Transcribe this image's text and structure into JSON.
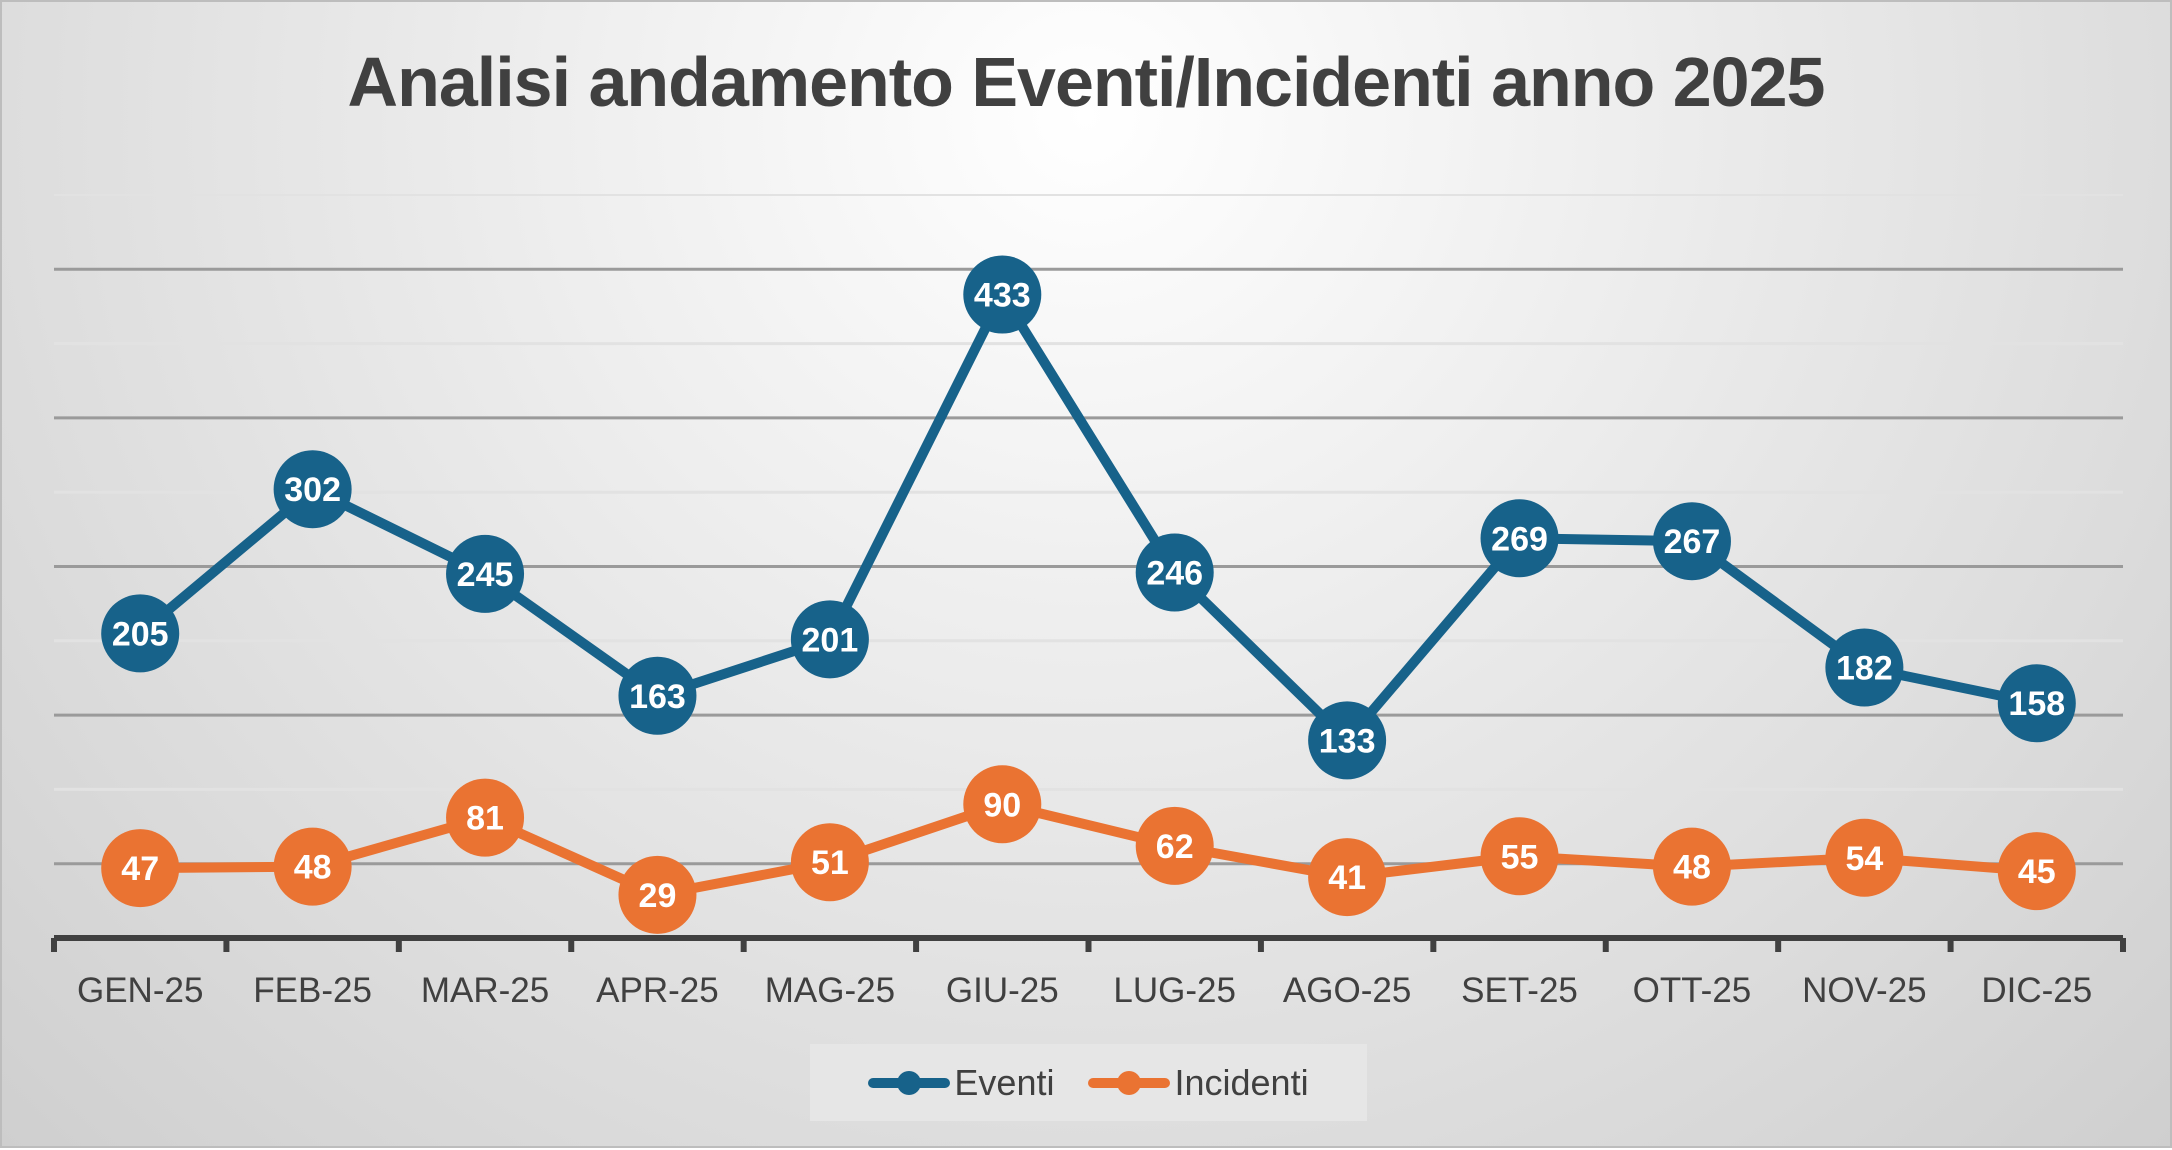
{
  "chart_data": {
    "type": "line",
    "title": "Analisi andamento Eventi/Incidenti anno 2025",
    "categories": [
      "GEN-25",
      "FEB-25",
      "MAR-25",
      "APR-25",
      "MAG-25",
      "GIU-25",
      "LUG-25",
      "AGO-25",
      "SET-25",
      "OTT-25",
      "NOV-25",
      "DIC-25"
    ],
    "series": [
      {
        "name": "Eventi",
        "color": "#17628a",
        "values": [
          205,
          302,
          245,
          163,
          201,
          433,
          246,
          133,
          269,
          267,
          182,
          158
        ]
      },
      {
        "name": "Incidenti",
        "color": "#ea7332",
        "values": [
          47,
          48,
          81,
          29,
          51,
          90,
          62,
          41,
          55,
          48,
          54,
          45
        ]
      }
    ],
    "ylim": [
      0,
      500
    ],
    "grid_step": 50,
    "grid": true,
    "y_tick_labels_shown": false,
    "data_labels": true,
    "legend": "bottom"
  }
}
